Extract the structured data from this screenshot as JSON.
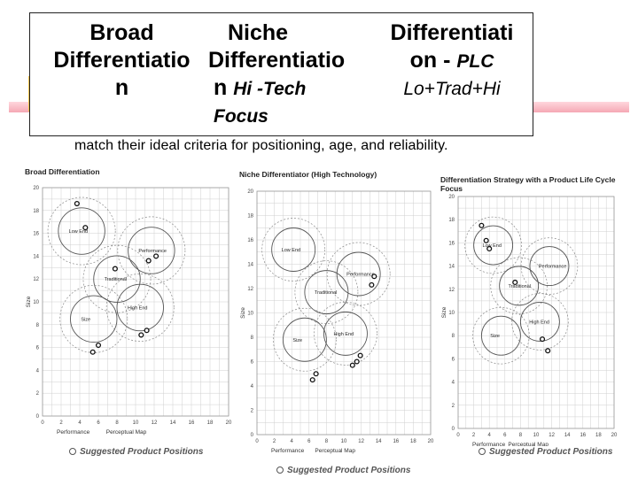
{
  "header": {
    "col1_line1": "Broad",
    "col1_line2": "Differentiatio",
    "col1_line3": "n",
    "col2_line1": "Niche",
    "col2_line2": "Differentiatio",
    "col2_line3a": "n ",
    "col2_line3b": "Hi -Tech",
    "col2_line4": "Focus",
    "col3_line1": "Differentiati",
    "col3_line2a": "on - ",
    "col3_line2b": "PLC",
    "col3_line3": "Lo+Trad+Hi"
  },
  "body_text": "match their ideal criteria for positioning, age, and reliability.",
  "colors": {
    "accent_pink": "#f5a8b4",
    "accent_yellow": "#f6c34a",
    "accent_blue": "#3a33a0",
    "circle_gray": "#555555"
  },
  "chart_data": [
    {
      "type": "scatter",
      "title": "Broad Differentiation",
      "xlabel": "Perceptual Map",
      "ylabel": "Size",
      "x_axis_name": "Performance",
      "xlim": [
        0,
        20
      ],
      "ylim": [
        0,
        20
      ],
      "x_ticks": [
        "0",
        "2",
        "4",
        "6",
        "8",
        "10",
        "12",
        "14",
        "16",
        "18",
        "20"
      ],
      "y_ticks": [
        "0",
        "2",
        "4",
        "6",
        "8",
        "10",
        "12",
        "14",
        "16",
        "18",
        "20"
      ],
      "segments": [
        {
          "name": "Low End",
          "cx": 4.2,
          "cy": 16.2,
          "r": 2.5
        },
        {
          "name": "Traditional",
          "cx": 8,
          "cy": 12,
          "r": 2.5
        },
        {
          "name": "Performance",
          "cx": 11.7,
          "cy": 14.5,
          "r": 2.5
        },
        {
          "name": "High End",
          "cx": 10.5,
          "cy": 9.5,
          "r": 2.5
        },
        {
          "name": "Size",
          "cx": 5.5,
          "cy": 8.5,
          "r": 2.5
        }
      ],
      "points": [
        [
          3.7,
          18.6
        ],
        [
          4.6,
          16.5
        ],
        [
          7.8,
          12.9
        ],
        [
          12.2,
          14.0
        ],
        [
          11.4,
          13.6
        ],
        [
          10.6,
          7.1
        ],
        [
          11.2,
          7.5
        ],
        [
          5.4,
          5.6
        ],
        [
          6.0,
          6.2
        ]
      ],
      "legend": "Suggested Product Positions"
    },
    {
      "type": "scatter",
      "title": "Niche Differentiator (High Technology)",
      "xlabel": "Perceptual Map",
      "ylabel": "Size",
      "x_axis_name": "Performance",
      "xlim": [
        0,
        20
      ],
      "ylim": [
        0,
        20
      ],
      "x_ticks": [
        "0",
        "2",
        "4",
        "6",
        "8",
        "10",
        "12",
        "14",
        "16",
        "18",
        "20"
      ],
      "y_ticks": [
        "0",
        "2",
        "4",
        "6",
        "8",
        "10",
        "12",
        "14",
        "16",
        "18",
        "20"
      ],
      "segments": [
        {
          "name": "Low End",
          "cx": 4.2,
          "cy": 15.2,
          "r": 2.5
        },
        {
          "name": "Traditional",
          "cx": 8,
          "cy": 11.7,
          "r": 2.5
        },
        {
          "name": "Performance",
          "cx": 11.7,
          "cy": 13.2,
          "r": 2.5
        },
        {
          "name": "High End",
          "cx": 10.2,
          "cy": 8.3,
          "r": 2.5
        },
        {
          "name": "Size",
          "cx": 5.5,
          "cy": 7.8,
          "r": 2.5
        }
      ],
      "points": [
        [
          13.2,
          12.3
        ],
        [
          13.5,
          13.0
        ],
        [
          11.5,
          6.0
        ],
        [
          11.0,
          5.7
        ],
        [
          11.9,
          6.5
        ],
        [
          6.8,
          5.0
        ],
        [
          6.4,
          4.5
        ]
      ],
      "legend": "Suggested Product Positions"
    },
    {
      "type": "scatter",
      "title": "Differentiation Strategy with a Product Life Cycle Focus",
      "xlabel": "Perceptual Map",
      "ylabel": "Size",
      "x_axis_name": "Performance",
      "xlim": [
        0,
        20
      ],
      "ylim": [
        0,
        20
      ],
      "x_ticks": [
        "0",
        "2",
        "4",
        "6",
        "8",
        "10",
        "12",
        "14",
        "16",
        "18",
        "20"
      ],
      "y_ticks": [
        "0",
        "2",
        "4",
        "6",
        "8",
        "10",
        "12",
        "14",
        "16",
        "18",
        "20"
      ],
      "segments": [
        {
          "name": "Low End",
          "cx": 4.5,
          "cy": 15.8,
          "r": 2.5
        },
        {
          "name": "Traditional",
          "cx": 7.8,
          "cy": 12.3,
          "r": 2.5
        },
        {
          "name": "Performance",
          "cx": 11.7,
          "cy": 14.0,
          "r": 2.5
        },
        {
          "name": "High End",
          "cx": 10.5,
          "cy": 9.2,
          "r": 2.5
        },
        {
          "name": "Size",
          "cx": 5.5,
          "cy": 8.0,
          "r": 2.5
        }
      ],
      "points": [
        [
          3.0,
          17.5
        ],
        [
          3.6,
          16.2
        ],
        [
          4.0,
          15.5
        ],
        [
          7.3,
          12.6
        ],
        [
          10.8,
          7.7
        ],
        [
          11.5,
          6.7
        ]
      ],
      "legend": "Suggested Product Positions"
    }
  ]
}
